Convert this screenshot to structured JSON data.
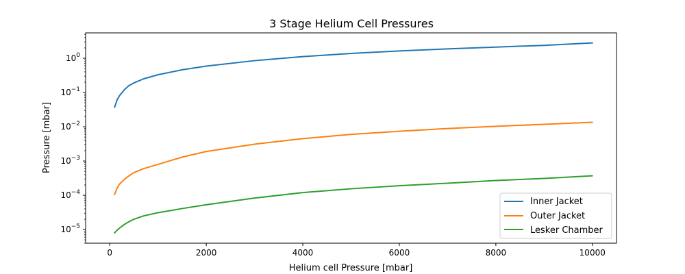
{
  "chart_data": {
    "type": "line",
    "title": "3 Stage Helium Cell Pressures",
    "xlabel": "Helium cell Pressure [mbar]",
    "ylabel": "Pressure [mbar]",
    "xscale": "linear",
    "yscale": "log",
    "xlim": [
      -500,
      10500
    ],
    "ylim": [
      4e-06,
      5.5
    ],
    "xticks": [
      0,
      2000,
      4000,
      6000,
      8000,
      10000
    ],
    "xtick_labels": [
      "0",
      "2000",
      "4000",
      "6000",
      "8000",
      "10000"
    ],
    "yticks": [
      1e-05,
      0.0001,
      0.001,
      0.01,
      0.1,
      1
    ],
    "ytick_labels": [
      {
        "base": "10",
        "exp": "−5"
      },
      {
        "base": "10",
        "exp": "−4"
      },
      {
        "base": "10",
        "exp": "−3"
      },
      {
        "base": "10",
        "exp": "−2"
      },
      {
        "base": "10",
        "exp": "−1"
      },
      {
        "base": "10",
        "exp": "0"
      }
    ],
    "grid": false,
    "legend_position": "lower-right",
    "series": [
      {
        "name": "Inner Jacket",
        "color": "#1f77b4",
        "x": [
          100,
          150,
          200,
          300,
          400,
          500,
          700,
          1000,
          1500,
          2000,
          3000,
          4000,
          5000,
          6000,
          7000,
          8000,
          9000,
          10000
        ],
        "y": [
          0.037,
          0.06,
          0.08,
          0.12,
          0.16,
          0.19,
          0.25,
          0.33,
          0.46,
          0.59,
          0.85,
          1.12,
          1.38,
          1.63,
          1.88,
          2.12,
          2.38,
          2.8
        ]
      },
      {
        "name": "Outer Jacket",
        "color": "#ff7f0e",
        "x": [
          100,
          150,
          200,
          300,
          400,
          500,
          700,
          1000,
          1500,
          2000,
          3000,
          4000,
          5000,
          6000,
          7000,
          8000,
          9000,
          10000
        ],
        "y": [
          0.000105,
          0.00016,
          0.00021,
          0.00029,
          0.00037,
          0.00046,
          0.0006,
          0.0008,
          0.0013,
          0.0019,
          0.0031,
          0.0045,
          0.006,
          0.0074,
          0.0089,
          0.0103,
          0.0118,
          0.0135
        ]
      },
      {
        "name": "Lesker Chamber",
        "color": "#2ca02c",
        "x": [
          100,
          150,
          200,
          300,
          400,
          500,
          700,
          1000,
          1500,
          2000,
          3000,
          4000,
          5000,
          6000,
          7000,
          8000,
          9000,
          10000
        ],
        "y": [
          8e-06,
          9.5e-06,
          1.1e-05,
          1.4e-05,
          1.7e-05,
          2e-05,
          2.5e-05,
          3.1e-05,
          4.1e-05,
          5.3e-05,
          8.3e-05,
          0.00012,
          0.000155,
          0.00019,
          0.000225,
          0.00027,
          0.00031,
          0.00037
        ]
      }
    ]
  }
}
